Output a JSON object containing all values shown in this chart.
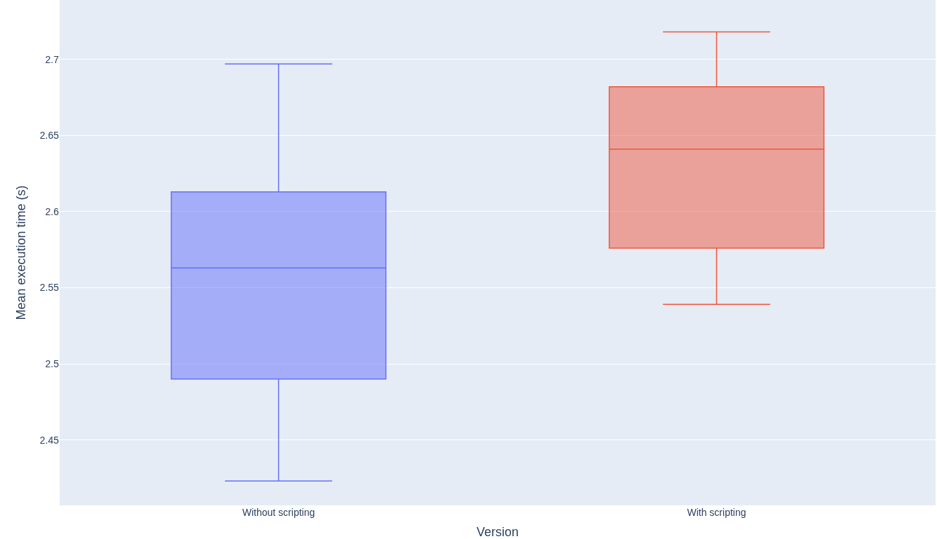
{
  "chart_data": {
    "type": "box",
    "xlabel": "Version",
    "ylabel": "Mean execution time (s)",
    "categories": [
      "Without scripting",
      "With scripting"
    ],
    "colors": [
      "#636efa",
      "#ef553b"
    ],
    "boxes": [
      {
        "low": 2.423,
        "q1": 2.49,
        "median": 2.563,
        "q3": 2.613,
        "high": 2.697
      },
      {
        "low": 2.539,
        "q1": 2.576,
        "median": 2.641,
        "q3": 2.682,
        "high": 2.718
      }
    ],
    "ylim": [
      2.407,
      2.739
    ],
    "yticks": [
      2.45,
      2.5,
      2.55,
      2.6,
      2.65,
      2.7
    ],
    "grid": "y"
  }
}
